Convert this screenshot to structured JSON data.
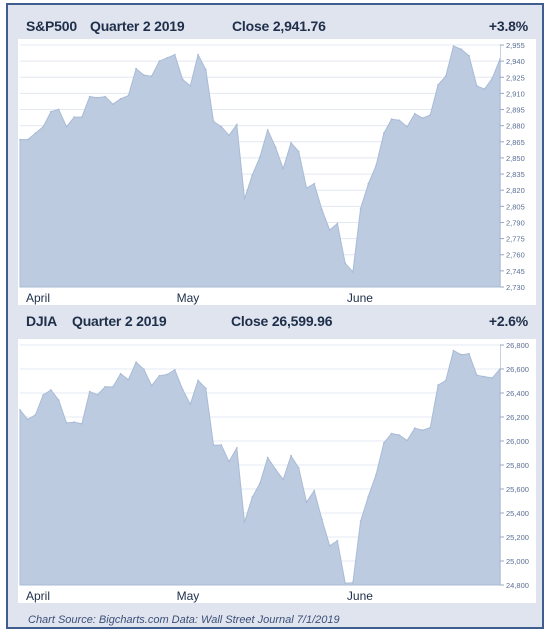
{
  "panels": [
    {
      "name": "S&P500",
      "period": "Quarter 2 2019",
      "close": "Close 2,941.76",
      "change": "+3.8%"
    },
    {
      "name": "DJIA",
      "period": "Quarter 2 2019",
      "close": "Close 26,599.96",
      "change": "+2.6%"
    }
  ],
  "source": "Chart Source: Bigcharts.com Data: Wall Street Journal 7/1/2019",
  "colors": {
    "fill": "#bccbe0",
    "frame": "#3f5d8f",
    "panel_bg": "#dfe4ef",
    "tick_text": "#5b6f94"
  },
  "chart_data": [
    {
      "type": "area",
      "title": "S&P500",
      "x_tick_labels": [
        "April",
        "May",
        "June"
      ],
      "ylim": [
        2730,
        2955
      ],
      "y_ticks": [
        "2,955",
        "2,940",
        "2,925",
        "2,910",
        "2,895",
        "2,880",
        "2,865",
        "2,850",
        "2,835",
        "2,820",
        "2,805",
        "2,790",
        "2,775",
        "2,760",
        "2,745",
        "2,730"
      ],
      "grid": true,
      "y_axis_side": "right",
      "x": [
        "Apr 1",
        "Apr 2",
        "Apr 3",
        "Apr 4",
        "Apr 5",
        "Apr 8",
        "Apr 9",
        "Apr 10",
        "Apr 11",
        "Apr 12",
        "Apr 15",
        "Apr 16",
        "Apr 17",
        "Apr 18",
        "Apr 22",
        "Apr 23",
        "Apr 24",
        "Apr 25",
        "Apr 26",
        "Apr 29",
        "Apr 30",
        "May 1",
        "May 2",
        "May 3",
        "May 6",
        "May 7",
        "May 8",
        "May 9",
        "May 10",
        "May 13",
        "May 14",
        "May 15",
        "May 16",
        "May 17",
        "May 20",
        "May 21",
        "May 22",
        "May 23",
        "May 24",
        "May 28",
        "May 29",
        "May 30",
        "May 31",
        "Jun 3",
        "Jun 4",
        "Jun 5",
        "Jun 6",
        "Jun 7",
        "Jun 10",
        "Jun 11",
        "Jun 12",
        "Jun 13",
        "Jun 14",
        "Jun 17",
        "Jun 18",
        "Jun 19",
        "Jun 20",
        "Jun 21",
        "Jun 24",
        "Jun 25",
        "Jun 26",
        "Jun 27",
        "Jun 28"
      ],
      "values": [
        2867,
        2867,
        2873,
        2879,
        2893,
        2895,
        2879,
        2888,
        2888,
        2907,
        2906,
        2907,
        2900,
        2905,
        2908,
        2933,
        2927,
        2926,
        2940,
        2943,
        2946,
        2923,
        2917,
        2946,
        2932,
        2884,
        2879,
        2871,
        2881,
        2812,
        2834,
        2851,
        2876,
        2860,
        2840,
        2864,
        2856,
        2822,
        2826,
        2802,
        2783,
        2789,
        2752,
        2744,
        2803,
        2826,
        2843,
        2873,
        2886,
        2885,
        2879,
        2891,
        2887,
        2890,
        2918,
        2926,
        2954,
        2951,
        2945,
        2917,
        2914,
        2924,
        2942
      ]
    },
    {
      "type": "area",
      "title": "DJIA",
      "x_tick_labels": [
        "April",
        "May",
        "June"
      ],
      "ylim": [
        24800,
        26800
      ],
      "y_ticks": [
        "26,800",
        "26,600",
        "26,400",
        "26,200",
        "26,000",
        "25,800",
        "25,600",
        "25,400",
        "25,200",
        "25,000",
        "24,800"
      ],
      "grid": true,
      "y_axis_side": "right",
      "x": [
        "Apr 1",
        "Apr 2",
        "Apr 3",
        "Apr 4",
        "Apr 5",
        "Apr 8",
        "Apr 9",
        "Apr 10",
        "Apr 11",
        "Apr 12",
        "Apr 15",
        "Apr 16",
        "Apr 17",
        "Apr 18",
        "Apr 22",
        "Apr 23",
        "Apr 24",
        "Apr 25",
        "Apr 26",
        "Apr 29",
        "Apr 30",
        "May 1",
        "May 2",
        "May 3",
        "May 6",
        "May 7",
        "May 8",
        "May 9",
        "May 10",
        "May 13",
        "May 14",
        "May 15",
        "May 16",
        "May 17",
        "May 20",
        "May 21",
        "May 22",
        "May 23",
        "May 24",
        "May 28",
        "May 29",
        "May 30",
        "May 31",
        "Jun 3",
        "Jun 4",
        "Jun 5",
        "Jun 6",
        "Jun 7",
        "Jun 10",
        "Jun 11",
        "Jun 12",
        "Jun 13",
        "Jun 14",
        "Jun 17",
        "Jun 18",
        "Jun 19",
        "Jun 20",
        "Jun 21",
        "Jun 24",
        "Jun 25",
        "Jun 26",
        "Jun 27",
        "Jun 28"
      ],
      "values": [
        26258,
        26180,
        26218,
        26384,
        26425,
        26341,
        26151,
        26157,
        26143,
        26412,
        26385,
        26452,
        26450,
        26560,
        26511,
        26657,
        26597,
        26462,
        26543,
        26554,
        26593,
        26430,
        26307,
        26505,
        26438,
        25965,
        25967,
        25828,
        25942,
        25324,
        25532,
        25648,
        25862,
        25764,
        25680,
        25877,
        25776,
        25490,
        25586,
        25347,
        25127,
        25169,
        24815,
        24819,
        25332,
        25539,
        25720,
        25984,
        26062,
        26049,
        26004,
        26107,
        26090,
        26112,
        26465,
        26504,
        26753,
        26719,
        26727,
        26548,
        26536,
        26526,
        26600
      ]
    }
  ]
}
